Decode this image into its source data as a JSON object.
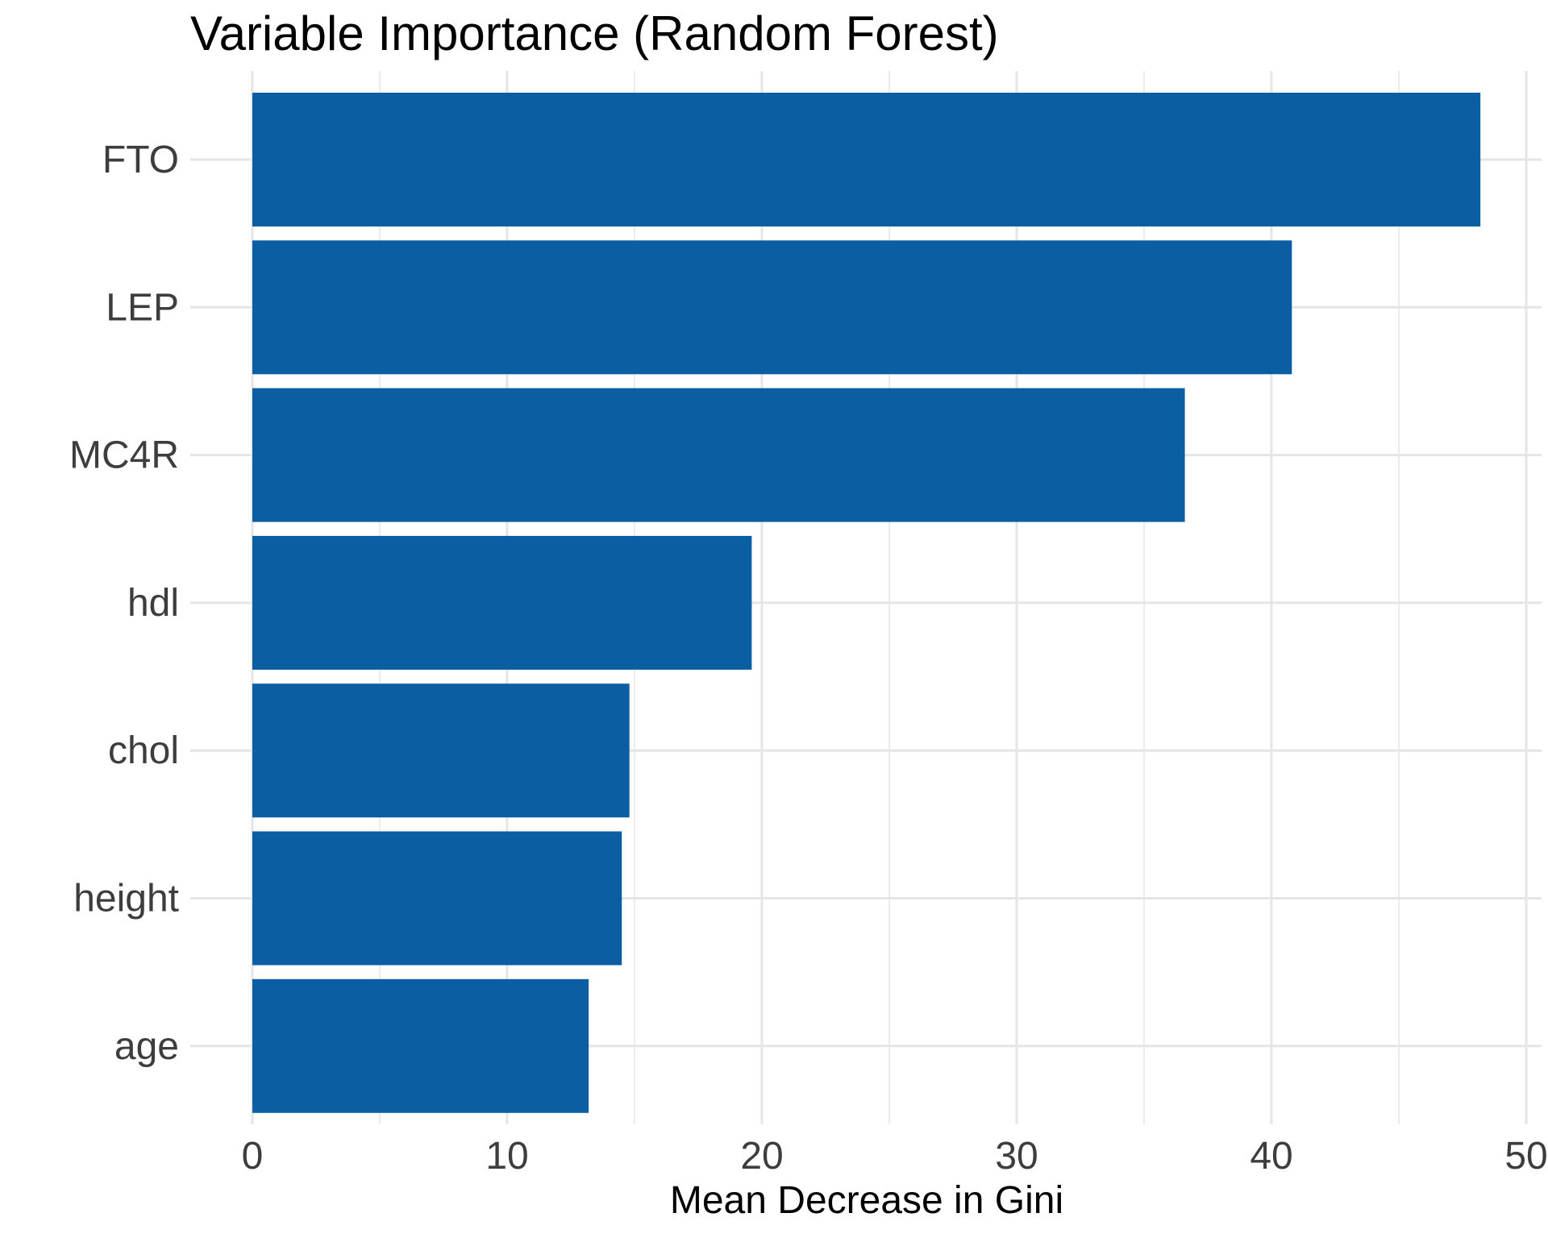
{
  "chart_data": {
    "type": "bar",
    "orientation": "horizontal",
    "title": "Variable Importance (Random Forest)",
    "xlabel": "Mean Decrease in Gini",
    "ylabel": "",
    "categories": [
      "FTO",
      "LEP",
      "MC4R",
      "hdl",
      "chol",
      "height",
      "age"
    ],
    "values": [
      48.2,
      40.8,
      36.6,
      19.6,
      14.8,
      14.5,
      13.2
    ],
    "xlim": [
      0,
      50.6
    ],
    "x_ticks": [
      0,
      10,
      20,
      30,
      40,
      50
    ],
    "x_tick_labels": [
      "0",
      "10",
      "20",
      "30",
      "40",
      "50"
    ],
    "grid": true,
    "bar_color": "#0b5ea1",
    "grid_color": "#e5e5e5",
    "legend": "none"
  }
}
